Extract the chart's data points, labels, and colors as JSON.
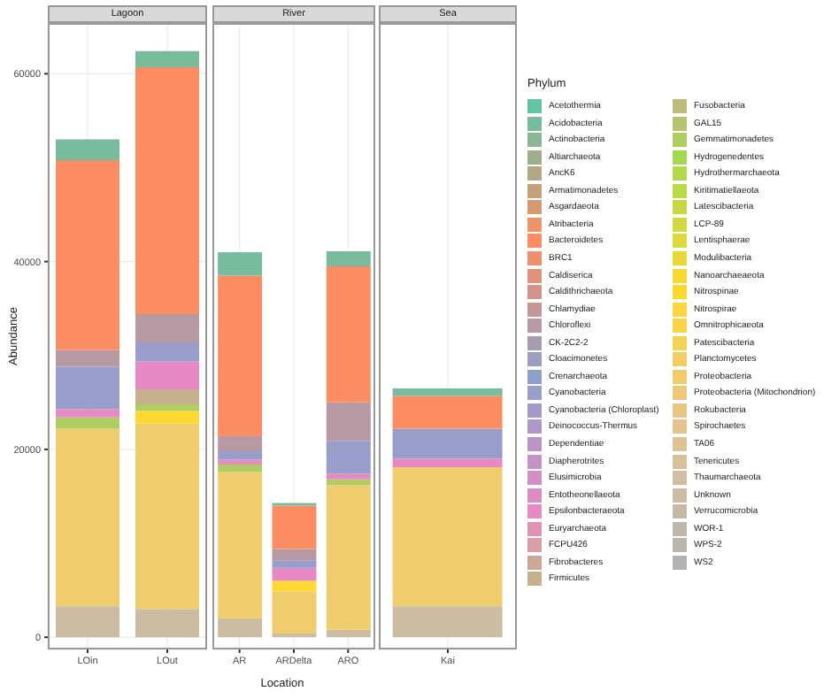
{
  "chart_data": [
    {
      "type": "bar",
      "title": "Lagoon",
      "ylabel": "Abundance",
      "categories": [
        "LOin",
        "LOut"
      ],
      "stacked": true,
      "grid": true,
      "ylim": [
        -1300,
        65400
      ],
      "yticks": [
        0,
        20000,
        40000,
        60000
      ],
      "series": [
        {
          "color": "#ccbca4",
          "values": [
            3300,
            3000
          ]
        },
        {
          "color": "#efcc6e",
          "values": [
            18900,
            19800
          ]
        },
        {
          "color": "#ffd92f",
          "values": [
            0,
            1300
          ]
        },
        {
          "color": "#aece62",
          "values": [
            1200,
            700
          ]
        },
        {
          "color": "#c6b18c",
          "values": [
            0,
            1600
          ]
        },
        {
          "color": "#e78ac3",
          "values": [
            900,
            3000
          ]
        },
        {
          "color": "#989dca",
          "values": [
            4500,
            2000
          ]
        },
        {
          "color": "#b799a4",
          "values": [
            1800,
            3000
          ]
        },
        {
          "color": "#fc8d62",
          "values": [
            20200,
            26300
          ]
        },
        {
          "color": "#79bb9d",
          "values": [
            2200,
            1700
          ]
        }
      ]
    },
    {
      "type": "bar",
      "title": "River",
      "xlabel": "Location",
      "categories": [
        "AR",
        "ARDelta",
        "ARO"
      ],
      "stacked": true,
      "grid": true,
      "tick_labels": "x",
      "ylim": [
        -1300,
        65400
      ],
      "yticks": [
        0,
        20000,
        40000,
        60000
      ],
      "series": [
        {
          "color": "#ccbca4",
          "values": [
            2000,
            400,
            800
          ]
        },
        {
          "color": "#efcc6e",
          "values": [
            15600,
            4500,
            15400
          ]
        },
        {
          "color": "#ffd92f",
          "values": [
            0,
            1100,
            0
          ]
        },
        {
          "color": "#aece62",
          "values": [
            800,
            0,
            600
          ]
        },
        {
          "color": "#e78ac3",
          "values": [
            500,
            1400,
            600
          ]
        },
        {
          "color": "#989dca",
          "values": [
            900,
            800,
            3500
          ]
        },
        {
          "color": "#b799a4",
          "values": [
            1600,
            1200,
            4100
          ]
        },
        {
          "color": "#fc8d62",
          "values": [
            17100,
            4600,
            14500
          ]
        },
        {
          "color": "#79bb9d",
          "values": [
            2500,
            300,
            1600
          ]
        }
      ]
    },
    {
      "type": "bar",
      "title": "Sea",
      "categories": [
        "Kai"
      ],
      "stacked": true,
      "grid": true,
      "tick_labels": "x",
      "ylim": [
        -1300,
        65400
      ],
      "yticks": [
        0,
        20000,
        40000,
        60000
      ],
      "legend": "right",
      "legend_title": "Phylum",
      "series": [
        {
          "name": "WS2",
          "color": "#b3b3b3",
          "values": [
            0
          ]
        },
        {
          "name": "WPS-2",
          "color": "#b9b5af",
          "values": [
            0
          ]
        },
        {
          "name": "WOR-1",
          "color": "#c0b7ab",
          "values": [
            0
          ]
        },
        {
          "name": "Verrucomicrobia",
          "color": "#c6b9a7",
          "values": [
            0
          ]
        },
        {
          "name": "Unknown",
          "color": "#ccbca4",
          "values": [
            3300
          ]
        },
        {
          "name": "Thaumarchaeota",
          "color": "#d2bea0",
          "values": [
            0
          ]
        },
        {
          "name": "Tenericutes",
          "color": "#d8c09c",
          "values": [
            0
          ]
        },
        {
          "name": "TA06",
          "color": "#dfc298",
          "values": [
            0
          ]
        },
        {
          "name": "Spirochaetes",
          "color": "#e5c494",
          "values": [
            0
          ]
        },
        {
          "name": "Rokubacteria",
          "color": "#e8c787",
          "values": [
            0
          ]
        },
        {
          "name": "Proteobacteria (Mitochondrion)",
          "color": "#ecc97b",
          "values": [
            0
          ]
        },
        {
          "name": "Proteobacteria",
          "color": "#efcc6e",
          "values": [
            14800
          ]
        },
        {
          "name": "Planctomycetes",
          "color": "#f2ce62",
          "values": [
            0
          ]
        },
        {
          "name": "Patescibacteria",
          "color": "#f5d155",
          "values": [
            0
          ]
        },
        {
          "name": "Omnitrophicaeota",
          "color": "#f8d448",
          "values": [
            0
          ]
        },
        {
          "name": "Nitrospirae",
          "color": "#fcd63c",
          "values": [
            0
          ]
        },
        {
          "name": "Nitrospinae",
          "color": "#ffd92f",
          "values": [
            0
          ]
        },
        {
          "name": "Nanoarchaeaeota",
          "color": "#f4d934",
          "values": [
            0
          ]
        },
        {
          "name": "Modulibacteria",
          "color": "#e9d938",
          "values": [
            0
          ]
        },
        {
          "name": "Lentisphaerae",
          "color": "#ded93d",
          "values": [
            0
          ]
        },
        {
          "name": "LCP-89",
          "color": "#d2d842",
          "values": [
            0
          ]
        },
        {
          "name": "Latescibacteria",
          "color": "#c7d846",
          "values": [
            0
          ]
        },
        {
          "name": "Kiritimatiellaeota",
          "color": "#bcd84b",
          "values": [
            0
          ]
        },
        {
          "name": "Hydrothermarchaeota",
          "color": "#b1d84f",
          "values": [
            0
          ]
        },
        {
          "name": "Hydrogenedentes",
          "color": "#a6d854",
          "values": [
            0
          ]
        },
        {
          "name": "Gemmatimonadetes",
          "color": "#aece62",
          "values": [
            0
          ]
        },
        {
          "name": "GAL15",
          "color": "#b6c470",
          "values": [
            0
          ]
        },
        {
          "name": "Fusobacteria",
          "color": "#bebb7e",
          "values": [
            0
          ]
        },
        {
          "name": "Firmicutes",
          "color": "#c6b18c",
          "values": [
            0
          ]
        },
        {
          "name": "Fibrobacteres",
          "color": "#cfa799",
          "values": [
            0
          ]
        },
        {
          "name": "FCPU426",
          "color": "#d79ea7",
          "values": [
            0
          ]
        },
        {
          "name": "Euryarchaeota",
          "color": "#df94b5",
          "values": [
            0
          ]
        },
        {
          "name": "Epsilonbacteraeota",
          "color": "#e78ac3",
          "values": [
            900
          ]
        },
        {
          "name": "Entotheonellaeota",
          "color": "#dc8dc4",
          "values": [
            0
          ]
        },
        {
          "name": "Elusimicrobia",
          "color": "#d090c5",
          "values": [
            0
          ]
        },
        {
          "name": "Diapherotrites",
          "color": "#c592c6",
          "values": [
            0
          ]
        },
        {
          "name": "Dependentiae",
          "color": "#ba95c7",
          "values": [
            0
          ]
        },
        {
          "name": "Deinococcus-Thermus",
          "color": "#af98c8",
          "values": [
            0
          ]
        },
        {
          "name": "Cyanobacteria (Chloroplast)",
          "color": "#a49ac9",
          "values": [
            0
          ]
        },
        {
          "name": "Cyanobacteria",
          "color": "#989dca",
          "values": [
            3200
          ]
        },
        {
          "name": "Crenarchaeota",
          "color": "#8da0cb",
          "values": [
            0
          ]
        },
        {
          "name": "Cloacimonetes",
          "color": "#9b9ebe",
          "values": [
            0
          ]
        },
        {
          "name": "CK-2C2-2",
          "color": "#a99bb1",
          "values": [
            0
          ]
        },
        {
          "name": "Chloroflexi",
          "color": "#b799a4",
          "values": [
            0
          ]
        },
        {
          "name": "Chlamydiae",
          "color": "#c49696",
          "values": [
            0
          ]
        },
        {
          "name": "Caldithrichaeota",
          "color": "#d29489",
          "values": [
            0
          ]
        },
        {
          "name": "Caldiserica",
          "color": "#e0927c",
          "values": [
            0
          ]
        },
        {
          "name": "BRC1",
          "color": "#ee8f6f",
          "values": [
            0
          ]
        },
        {
          "name": "Bacteroidetes",
          "color": "#fc8d62",
          "values": [
            3500
          ]
        },
        {
          "name": "Atribacteria",
          "color": "#e9946a",
          "values": [
            0
          ]
        },
        {
          "name": "Asgardaeota",
          "color": "#d69a73",
          "values": [
            0
          ]
        },
        {
          "name": "Armatimonadetes",
          "color": "#c4a17b",
          "values": [
            0
          ]
        },
        {
          "name": "AncK6",
          "color": "#b1a884",
          "values": [
            0
          ]
        },
        {
          "name": "Altiarchaeota",
          "color": "#9eae8c",
          "values": [
            0
          ]
        },
        {
          "name": "Actinobacteria",
          "color": "#8cb594",
          "values": [
            0
          ]
        },
        {
          "name": "Acidobacteria",
          "color": "#79bb9d",
          "values": [
            800
          ]
        },
        {
          "name": "Acetothermia",
          "color": "#66c2a5",
          "values": [
            0
          ]
        }
      ]
    }
  ]
}
